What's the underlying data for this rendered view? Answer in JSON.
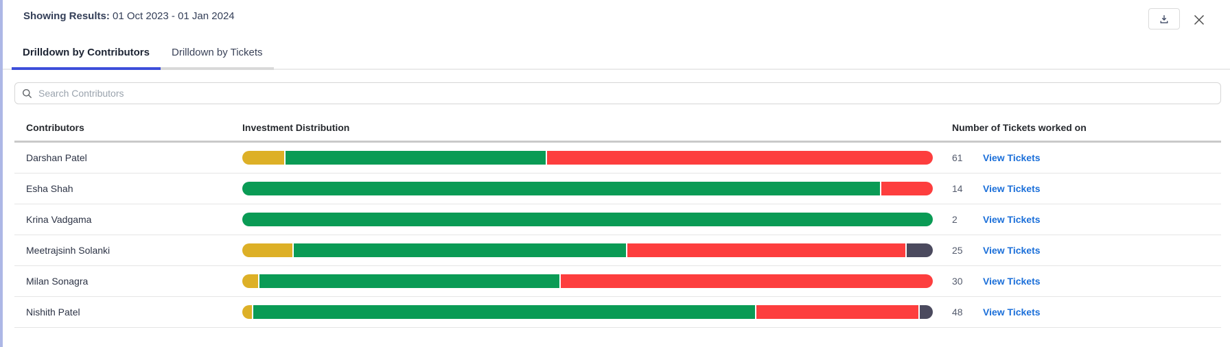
{
  "header": {
    "showing_results_label": "Showing Results:",
    "date_range": "01 Oct 2023 - 01 Jan 2024"
  },
  "actions": {
    "download_icon": "download-icon",
    "close_icon": "close-icon"
  },
  "tabs": [
    {
      "label": "Drilldown by Contributors",
      "active": true
    },
    {
      "label": "Drilldown by Tickets",
      "active": false
    }
  ],
  "search": {
    "placeholder": "Search Contributors"
  },
  "table": {
    "columns": [
      "Contributors",
      "Investment Distribution",
      "Number of Tickets worked on"
    ],
    "rows": [
      {
        "name": "Darshan Patel",
        "tickets": "61",
        "link": "View Tickets",
        "segments": [
          {
            "color": "yellow",
            "pct": 6.1
          },
          {
            "color": "green",
            "pct": 37.8
          },
          {
            "color": "red",
            "pct": 56.1
          }
        ]
      },
      {
        "name": "Esha Shah",
        "tickets": "14",
        "link": "View Tickets",
        "segments": [
          {
            "color": "green",
            "pct": 92.5
          },
          {
            "color": "red",
            "pct": 7.5
          }
        ]
      },
      {
        "name": "Krina Vadgama",
        "tickets": "2",
        "link": "View Tickets",
        "segments": [
          {
            "color": "green",
            "pct": 100
          }
        ]
      },
      {
        "name": "Meetrajsinh Solanki",
        "tickets": "25",
        "link": "View Tickets",
        "segments": [
          {
            "color": "yellow",
            "pct": 7.3
          },
          {
            "color": "green",
            "pct": 48.4
          },
          {
            "color": "red",
            "pct": 40.5
          },
          {
            "color": "dark",
            "pct": 3.8
          }
        ]
      },
      {
        "name": "Milan Sonagra",
        "tickets": "30",
        "link": "View Tickets",
        "segments": [
          {
            "color": "yellow",
            "pct": 2.3
          },
          {
            "color": "green",
            "pct": 43.6
          },
          {
            "color": "red",
            "pct": 54.1
          }
        ]
      },
      {
        "name": "Nishith Patel",
        "tickets": "48",
        "link": "View Tickets",
        "segments": [
          {
            "color": "yellow",
            "pct": 1.4
          },
          {
            "color": "green",
            "pct": 73.1
          },
          {
            "color": "red",
            "pct": 23.6
          },
          {
            "color": "dark",
            "pct": 1.9
          }
        ]
      }
    ]
  },
  "colors": {
    "yellow": "#DDB027",
    "green": "#0A9B55",
    "red": "#FD3E3E",
    "dark": "#4B4A5E",
    "accent": "#3D4EDA",
    "link": "#1B6FD9",
    "left_border": "#ADB7E6"
  }
}
